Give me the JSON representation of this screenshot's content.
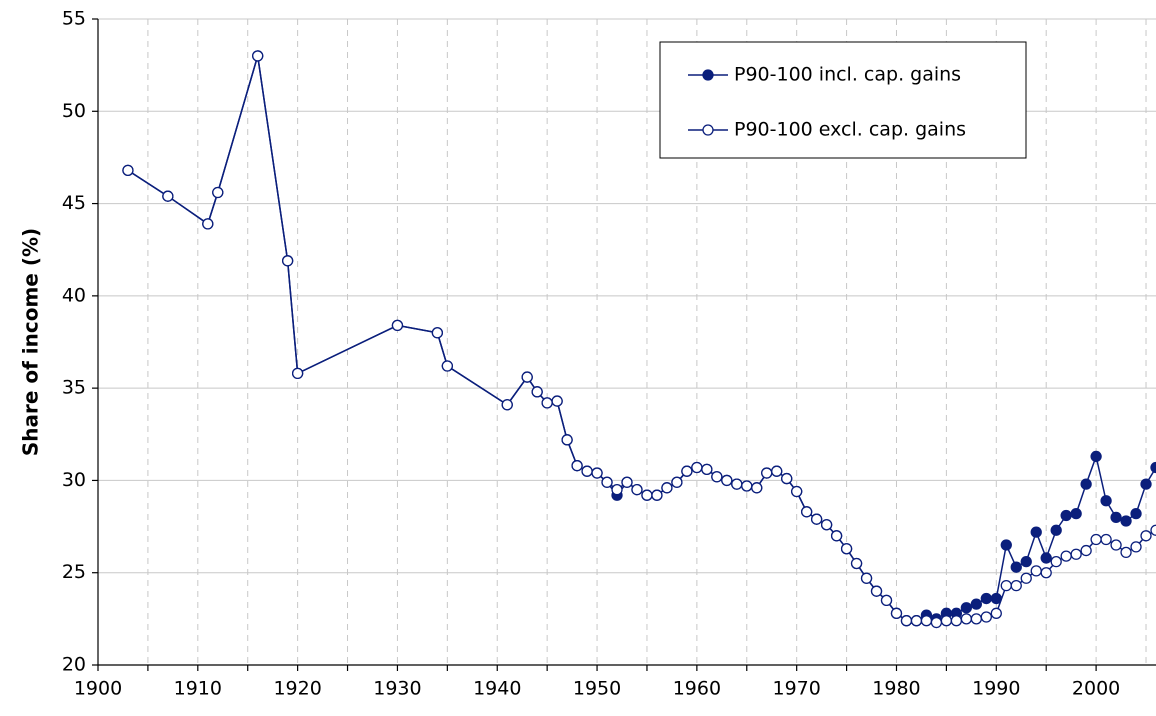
{
  "chart_data": {
    "type": "line",
    "y_label": "Share of income (%)",
    "x": [
      1903,
      1907,
      1911,
      1912,
      1916,
      1919,
      1920,
      1930,
      1934,
      1935,
      1941,
      1943,
      1944,
      1945,
      1946,
      1947,
      1948,
      1949,
      1950,
      1951,
      1952,
      1953,
      1954,
      1955,
      1956,
      1957,
      1958,
      1959,
      1960,
      1961,
      1962,
      1963,
      1964,
      1965,
      1966,
      1967,
      1968,
      1969,
      1970,
      1971,
      1972,
      1973,
      1974,
      1975,
      1976,
      1977,
      1978,
      1979,
      1980,
      1981,
      1982,
      1983,
      1984,
      1985,
      1986,
      1987,
      1988,
      1989,
      1990,
      1991,
      1992,
      1993,
      1994,
      1995,
      1996,
      1997,
      1998,
      1999,
      2000,
      2001,
      2002,
      2003,
      2004,
      2005,
      2006
    ],
    "series": [
      {
        "name": "P90-100 incl. cap. gains",
        "color": "#0b1f7c",
        "marker": "filled",
        "values": [
          46.8,
          45.4,
          43.9,
          45.6,
          53.0,
          41.9,
          35.8,
          38.4,
          38.0,
          36.2,
          34.1,
          35.6,
          34.8,
          34.2,
          34.3,
          32.2,
          30.8,
          30.5,
          30.4,
          29.9,
          29.2,
          29.9,
          29.5,
          29.2,
          29.2,
          29.6,
          29.9,
          30.5,
          30.7,
          30.6,
          30.2,
          30.0,
          29.8,
          29.7,
          29.6,
          30.4,
          30.5,
          30.1,
          29.4,
          28.3,
          27.9,
          27.6,
          27.0,
          26.3,
          25.5,
          24.7,
          24.0,
          23.5,
          22.8,
          22.4,
          22.4,
          22.7,
          22.5,
          22.8,
          22.8,
          23.1,
          23.3,
          23.6,
          23.6,
          26.5,
          25.3,
          25.6,
          27.2,
          25.8,
          27.3,
          28.1,
          28.2,
          29.8,
          31.3,
          28.9,
          28.0,
          27.8,
          28.2,
          29.8,
          30.7
        ]
      },
      {
        "name": "P90-100 excl. cap. gains",
        "color": "#0b1f7c",
        "marker": "open",
        "values": [
          46.8,
          45.4,
          43.9,
          45.6,
          53.0,
          41.9,
          35.8,
          38.4,
          38.0,
          36.2,
          34.1,
          35.6,
          34.8,
          34.2,
          34.3,
          32.2,
          30.8,
          30.5,
          30.4,
          29.9,
          29.5,
          29.9,
          29.5,
          29.2,
          29.2,
          29.6,
          29.9,
          30.5,
          30.7,
          30.6,
          30.2,
          30.0,
          29.8,
          29.7,
          29.6,
          30.4,
          30.5,
          30.1,
          29.4,
          28.3,
          27.9,
          27.6,
          27.0,
          26.3,
          25.5,
          24.7,
          24.0,
          23.5,
          22.8,
          22.4,
          22.4,
          22.4,
          22.3,
          22.4,
          22.4,
          22.5,
          22.5,
          22.6,
          22.8,
          24.3,
          24.3,
          24.7,
          25.1,
          25.0,
          25.6,
          25.9,
          26.0,
          26.2,
          26.8,
          26.8,
          26.5,
          26.1,
          26.4,
          27.0,
          27.3
        ]
      }
    ],
    "xlim": [
      1900,
      2006
    ],
    "xticks": [
      1900,
      1910,
      1920,
      1930,
      1940,
      1950,
      1960,
      1970,
      1980,
      1990,
      2000
    ],
    "ylim": [
      20,
      55
    ],
    "yticks": [
      20,
      25,
      30,
      35,
      40,
      45,
      50,
      55
    ],
    "grid": true,
    "legend": "upper right"
  }
}
